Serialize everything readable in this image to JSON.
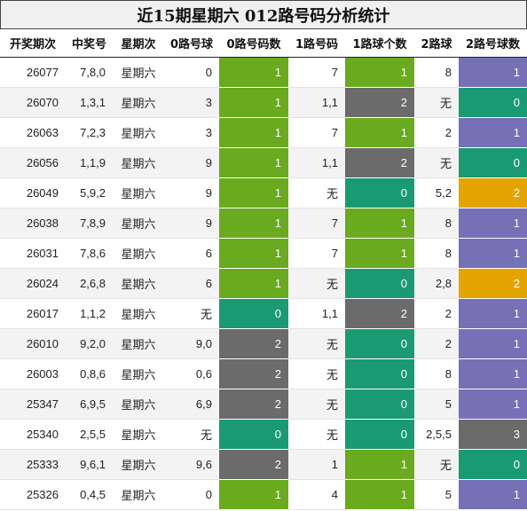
{
  "title": "近15期星期六 012路号码分析统计",
  "colors": {
    "green": "#6aaa1f",
    "gray": "#6b6b6b",
    "teal": "#1a9a73",
    "purple": "#7670b7",
    "orange": "#e3a400"
  },
  "headers": [
    "开奖期次",
    "中奖号",
    "星期次",
    "0路号球",
    "0路号码数",
    "1路号码",
    "1路球个数",
    "2路球",
    "2路号球数"
  ],
  "rows": [
    {
      "period": "26077",
      "number": "7,8,0",
      "weekday": "星期六",
      "r0": "0",
      "c0": "1",
      "r1": "7",
      "c1": "1",
      "r2": "8",
      "c2": "1"
    },
    {
      "period": "26070",
      "number": "1,3,1",
      "weekday": "星期六",
      "r0": "3",
      "c0": "1",
      "r1": "1,1",
      "c1": "2",
      "r2": "无",
      "c2": "0"
    },
    {
      "period": "26063",
      "number": "7,2,3",
      "weekday": "星期六",
      "r0": "3",
      "c0": "1",
      "r1": "7",
      "c1": "1",
      "r2": "2",
      "c2": "1"
    },
    {
      "period": "26056",
      "number": "1,1,9",
      "weekday": "星期六",
      "r0": "9",
      "c0": "1",
      "r1": "1,1",
      "c1": "2",
      "r2": "无",
      "c2": "0"
    },
    {
      "period": "26049",
      "number": "5,9,2",
      "weekday": "星期六",
      "r0": "9",
      "c0": "1",
      "r1": "无",
      "c1": "0",
      "r2": "5,2",
      "c2": "2"
    },
    {
      "period": "26038",
      "number": "7,8,9",
      "weekday": "星期六",
      "r0": "9",
      "c0": "1",
      "r1": "7",
      "c1": "1",
      "r2": "8",
      "c2": "1"
    },
    {
      "period": "26031",
      "number": "7,8,6",
      "weekday": "星期六",
      "r0": "6",
      "c0": "1",
      "r1": "7",
      "c1": "1",
      "r2": "8",
      "c2": "1"
    },
    {
      "period": "26024",
      "number": "2,6,8",
      "weekday": "星期六",
      "r0": "6",
      "c0": "1",
      "r1": "无",
      "c1": "0",
      "r2": "2,8",
      "c2": "2"
    },
    {
      "period": "26017",
      "number": "1,1,2",
      "weekday": "星期六",
      "r0": "无",
      "c0": "0",
      "r1": "1,1",
      "c1": "2",
      "r2": "2",
      "c2": "1"
    },
    {
      "period": "26010",
      "number": "9,2,0",
      "weekday": "星期六",
      "r0": "9,0",
      "c0": "2",
      "r1": "无",
      "c1": "0",
      "r2": "2",
      "c2": "1"
    },
    {
      "period": "26003",
      "number": "0,8,6",
      "weekday": "星期六",
      "r0": "0,6",
      "c0": "2",
      "r1": "无",
      "c1": "0",
      "r2": "8",
      "c2": "1"
    },
    {
      "period": "25347",
      "number": "6,9,5",
      "weekday": "星期六",
      "r0": "6,9",
      "c0": "2",
      "r1": "无",
      "c1": "0",
      "r2": "5",
      "c2": "1"
    },
    {
      "period": "25340",
      "number": "2,5,5",
      "weekday": "星期六",
      "r0": "无",
      "c0": "0",
      "r1": "无",
      "c1": "0",
      "r2": "2,5,5",
      "c2": "3"
    },
    {
      "period": "25333",
      "number": "9,6,1",
      "weekday": "星期六",
      "r0": "9,6",
      "c0": "2",
      "r1": "1",
      "c1": "1",
      "r2": "无",
      "c2": "0"
    },
    {
      "period": "25326",
      "number": "0,4,5",
      "weekday": "星期六",
      "r0": "0",
      "c0": "1",
      "r1": "4",
      "c1": "1",
      "r2": "5",
      "c2": "1"
    }
  ]
}
